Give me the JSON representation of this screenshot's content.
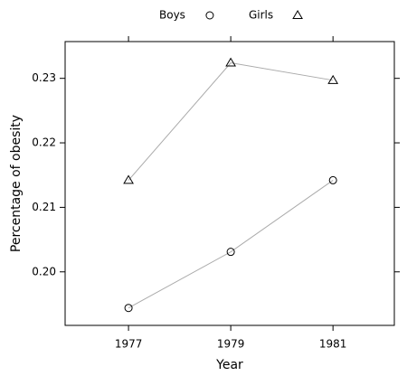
{
  "chart_data": {
    "type": "line",
    "x_label": "Year",
    "y_label": "Percentage of obesity",
    "x": [
      1977,
      1979,
      1981
    ],
    "series": [
      {
        "name": "Boys",
        "color": "#aaaaaa",
        "marker": "circle",
        "values": [
          0.1944,
          0.2031,
          0.2142
        ]
      },
      {
        "name": "Girls",
        "color": "#aaaaaa",
        "marker": "triangle",
        "values": [
          0.2142,
          0.2324,
          0.2297
        ]
      }
    ],
    "xlim": [
      1975.76,
      1982.2
    ],
    "xticks": [
      1977,
      1979,
      1981
    ],
    "ylim": [
      0.1917,
      0.2357
    ],
    "yticks": [
      {
        "value": 0.2,
        "label": "0.20"
      },
      0.21,
      0.22,
      0.23
    ],
    "legend": "top"
  }
}
